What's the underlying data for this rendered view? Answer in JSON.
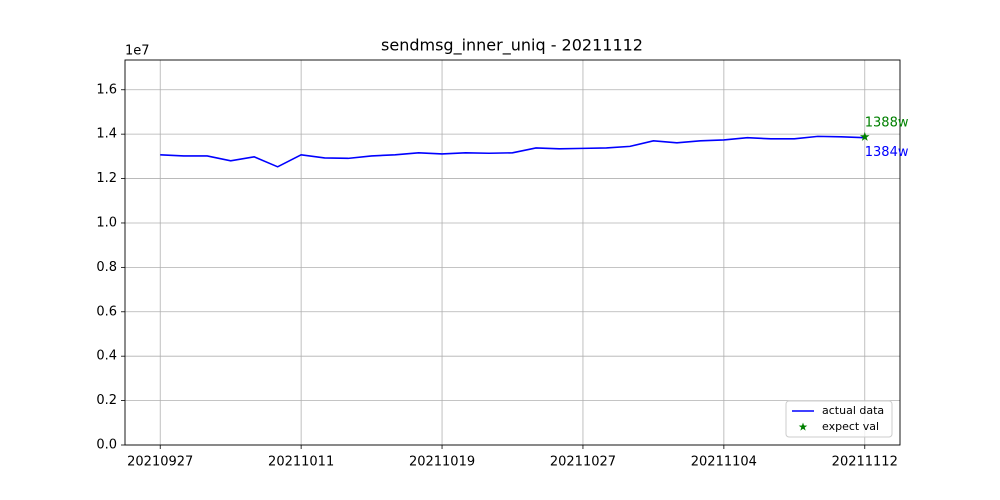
{
  "chart_data": {
    "type": "line",
    "title": "sendmsg_inner_uniq - 20211112",
    "y_offset_label": "1e7",
    "categories": [
      "20210927",
      null,
      null,
      null,
      null,
      null,
      "20211011",
      null,
      null,
      null,
      null,
      null,
      "20211019",
      null,
      null,
      null,
      null,
      null,
      "20211027",
      null,
      null,
      null,
      null,
      null,
      "20211104",
      null,
      null,
      null,
      null,
      null,
      "20211112"
    ],
    "series": [
      {
        "name": "actual data",
        "color": "#0000ff",
        "marker": "line",
        "values": [
          1.307,
          1.302,
          1.302,
          1.28,
          1.298,
          1.253,
          1.307,
          1.293,
          1.291,
          1.302,
          1.307,
          1.316,
          1.311,
          1.316,
          1.314,
          1.316,
          1.338,
          1.334,
          1.336,
          1.338,
          1.345,
          1.37,
          1.361,
          1.37,
          1.374,
          1.384,
          1.379,
          1.379,
          1.39,
          1.388,
          1.384
        ],
        "value_labels": [
          null,
          null,
          null,
          null,
          null,
          null,
          null,
          null,
          null,
          null,
          null,
          null,
          null,
          null,
          null,
          null,
          null,
          null,
          null,
          null,
          null,
          null,
          null,
          null,
          null,
          null,
          null,
          null,
          null,
          null,
          "1384w"
        ]
      },
      {
        "name": "expect val",
        "color": "#008000",
        "marker": "star",
        "values": [
          null,
          null,
          null,
          null,
          null,
          null,
          null,
          null,
          null,
          null,
          null,
          null,
          null,
          null,
          null,
          null,
          null,
          null,
          null,
          null,
          null,
          null,
          null,
          null,
          null,
          null,
          null,
          null,
          null,
          null,
          1.388
        ],
        "value_labels": [
          null,
          null,
          null,
          null,
          null,
          null,
          null,
          null,
          null,
          null,
          null,
          null,
          null,
          null,
          null,
          null,
          null,
          null,
          null,
          null,
          null,
          null,
          null,
          null,
          null,
          null,
          null,
          null,
          null,
          null,
          "1388w"
        ]
      }
    ],
    "ylim": [
      0,
      1.734
    ],
    "yticks": [
      {
        "value": 0,
        "label": "0.0"
      },
      0.2,
      0.4,
      0.6,
      0.8,
      {
        "value": 1,
        "label": "1.0"
      },
      1.2,
      1.4,
      1.6
    ],
    "grid": true,
    "legend": "lower right"
  }
}
